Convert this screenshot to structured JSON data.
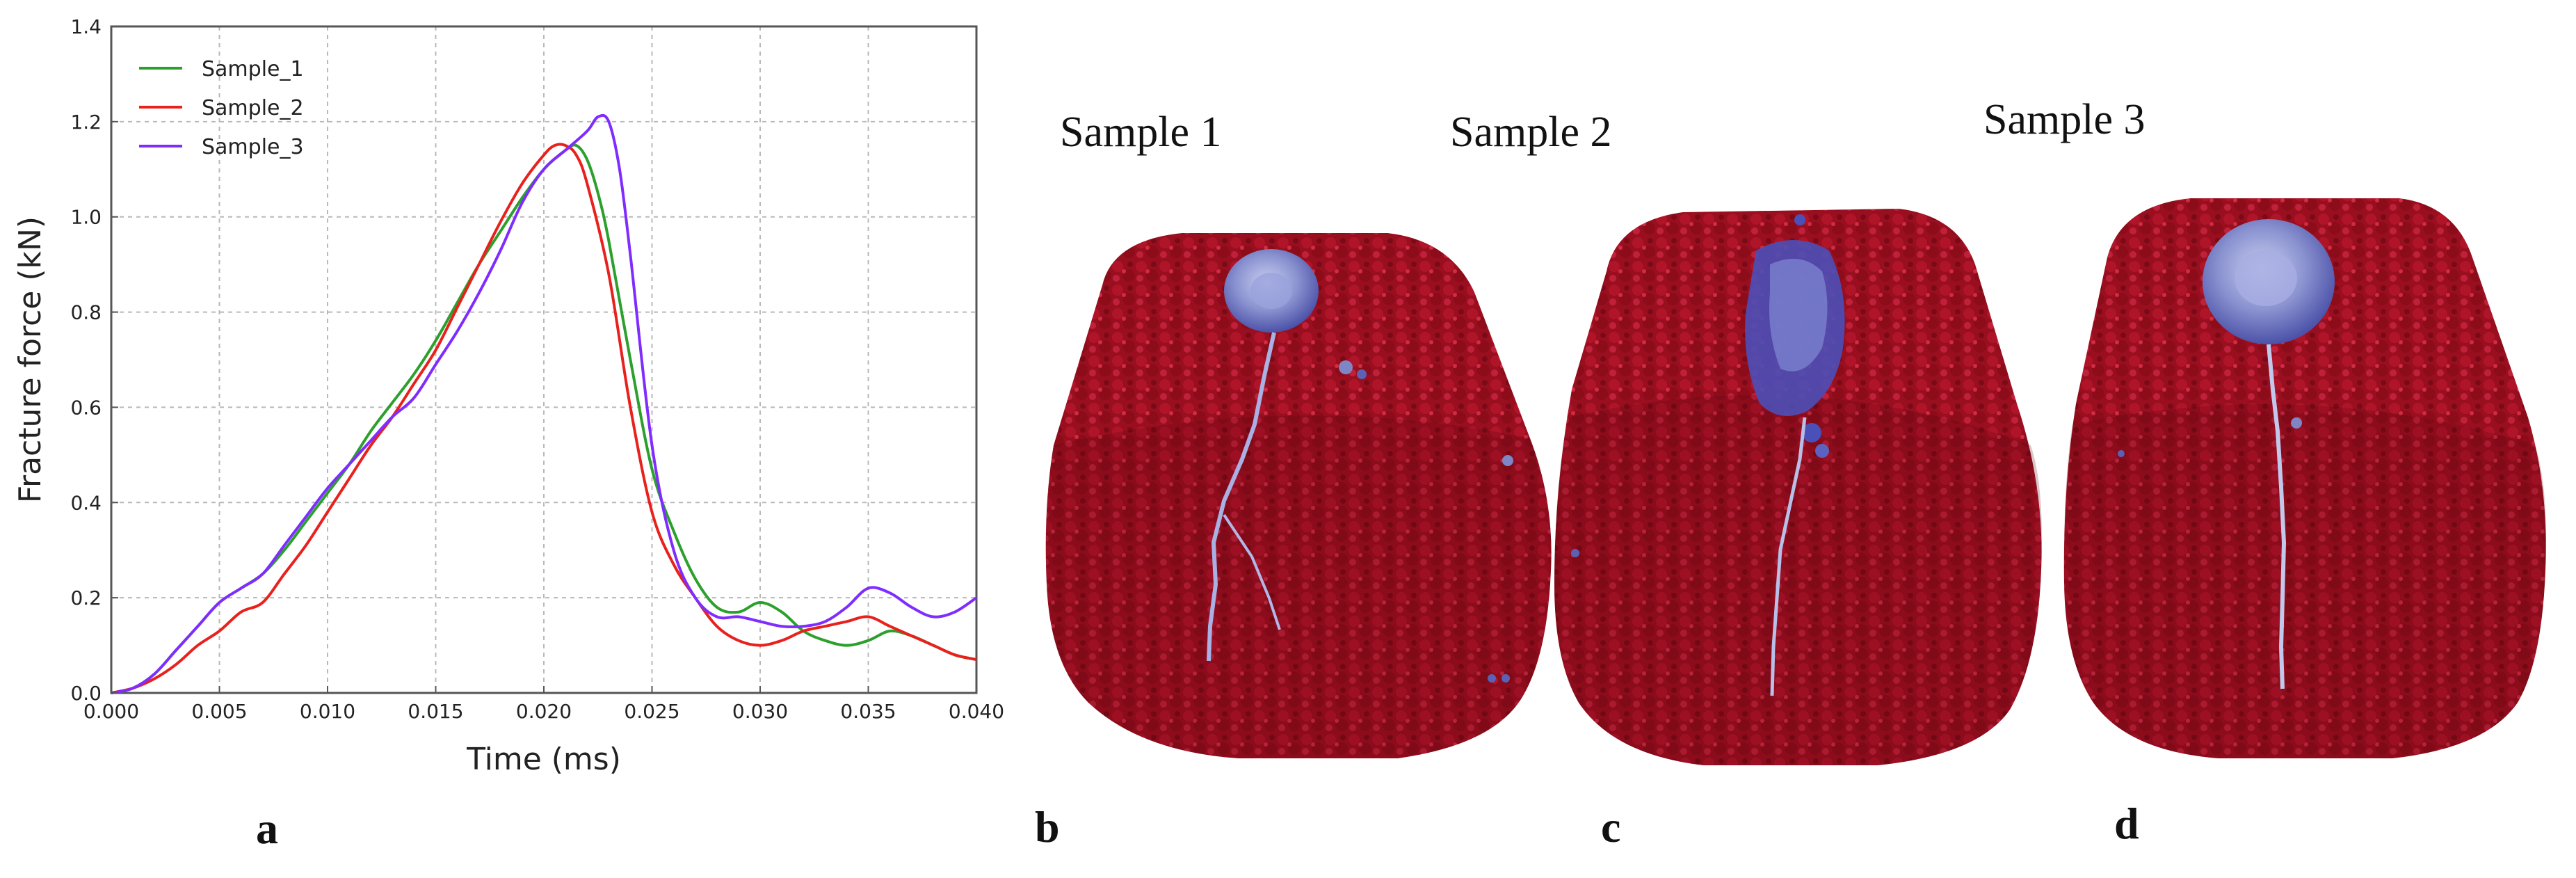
{
  "chart_data": {
    "type": "line",
    "xlabel": "Time (ms)",
    "ylabel": "Fracture force (kN)",
    "xlim": [
      0,
      0.04
    ],
    "ylim": [
      0,
      1.4
    ],
    "xticks": [
      "0.000",
      "0.005",
      "0.010",
      "0.015",
      "0.020",
      "0.025",
      "0.030",
      "0.035",
      "0.040"
    ],
    "yticks": [
      "0.0",
      "0.2",
      "0.4",
      "0.6",
      "0.8",
      "1.0",
      "1.2",
      "1.4"
    ],
    "grid": true,
    "legend_position": "top-left",
    "series": [
      {
        "name": "Sample_1",
        "color": "#2ca02c",
        "x": [
          0,
          0.001,
          0.002,
          0.003,
          0.004,
          0.005,
          0.006,
          0.007,
          0.008,
          0.009,
          0.01,
          0.011,
          0.012,
          0.013,
          0.014,
          0.015,
          0.016,
          0.017,
          0.018,
          0.019,
          0.02,
          0.021,
          0.0215,
          0.022,
          0.0225,
          0.023,
          0.024,
          0.025,
          0.026,
          0.027,
          0.028,
          0.029,
          0.03,
          0.031,
          0.032,
          0.033,
          0.034,
          0.035,
          0.036,
          0.037,
          0.038,
          0.039,
          0.04
        ],
        "y": [
          0,
          0.01,
          0.04,
          0.09,
          0.14,
          0.19,
          0.22,
          0.25,
          0.3,
          0.36,
          0.42,
          0.48,
          0.55,
          0.61,
          0.67,
          0.74,
          0.82,
          0.9,
          0.97,
          1.04,
          1.1,
          1.14,
          1.15,
          1.12,
          1.05,
          0.95,
          0.7,
          0.47,
          0.34,
          0.24,
          0.18,
          0.17,
          0.19,
          0.17,
          0.13,
          0.11,
          0.1,
          0.11,
          0.13,
          0.12,
          0.1,
          0.08,
          0.07
        ]
      },
      {
        "name": "Sample_2",
        "color": "#e8211d",
        "x": [
          0,
          0.001,
          0.002,
          0.003,
          0.004,
          0.005,
          0.006,
          0.007,
          0.008,
          0.009,
          0.01,
          0.011,
          0.012,
          0.013,
          0.014,
          0.015,
          0.016,
          0.017,
          0.018,
          0.019,
          0.02,
          0.0205,
          0.021,
          0.0215,
          0.022,
          0.023,
          0.024,
          0.025,
          0.026,
          0.027,
          0.028,
          0.029,
          0.03,
          0.031,
          0.032,
          0.033,
          0.034,
          0.035,
          0.036,
          0.037,
          0.038,
          0.039,
          0.04
        ],
        "y": [
          0,
          0.01,
          0.03,
          0.06,
          0.1,
          0.13,
          0.17,
          0.19,
          0.25,
          0.31,
          0.38,
          0.45,
          0.52,
          0.58,
          0.65,
          0.72,
          0.81,
          0.9,
          0.99,
          1.07,
          1.13,
          1.15,
          1.15,
          1.13,
          1.07,
          0.88,
          0.6,
          0.38,
          0.27,
          0.2,
          0.14,
          0.11,
          0.1,
          0.11,
          0.13,
          0.14,
          0.15,
          0.16,
          0.14,
          0.12,
          0.1,
          0.08,
          0.07
        ]
      },
      {
        "name": "Sample_3",
        "color": "#7f2cff",
        "x": [
          0,
          0.001,
          0.002,
          0.003,
          0.004,
          0.005,
          0.006,
          0.007,
          0.008,
          0.009,
          0.01,
          0.011,
          0.012,
          0.013,
          0.014,
          0.015,
          0.016,
          0.017,
          0.018,
          0.019,
          0.02,
          0.021,
          0.022,
          0.0225,
          0.023,
          0.0235,
          0.024,
          0.025,
          0.026,
          0.027,
          0.028,
          0.029,
          0.03,
          0.031,
          0.032,
          0.033,
          0.034,
          0.035,
          0.036,
          0.037,
          0.038,
          0.039,
          0.04
        ],
        "y": [
          0,
          0.01,
          0.04,
          0.09,
          0.14,
          0.19,
          0.22,
          0.25,
          0.31,
          0.37,
          0.43,
          0.48,
          0.53,
          0.58,
          0.62,
          0.69,
          0.76,
          0.84,
          0.93,
          1.03,
          1.1,
          1.14,
          1.18,
          1.21,
          1.2,
          1.1,
          0.92,
          0.52,
          0.3,
          0.2,
          0.16,
          0.16,
          0.15,
          0.14,
          0.14,
          0.15,
          0.18,
          0.22,
          0.21,
          0.18,
          0.16,
          0.17,
          0.2
        ]
      }
    ]
  },
  "panel_captions": {
    "b": "Sample 1",
    "c": "Sample 2",
    "d": "Sample 3"
  },
  "panel_letters": [
    "a",
    "b",
    "c",
    "d"
  ],
  "colors": {
    "particle_red": "#9b0d1f",
    "particle_highlight": "#c81e34",
    "fracture_blue": "#7e86c8",
    "fracture_dark": "#3a3fa0"
  }
}
